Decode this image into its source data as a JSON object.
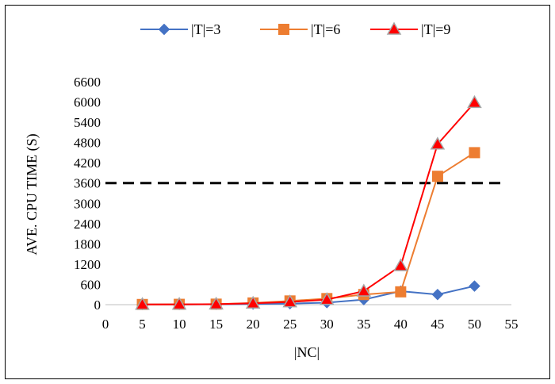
{
  "chart_data": {
    "type": "line",
    "title": "",
    "xlabel": "|NC|",
    "ylabel": "AVE. CPU TIME (S)",
    "xlim": [
      0,
      55
    ],
    "ylim": [
      0,
      6600
    ],
    "x_ticks": [
      "0",
      "5",
      "10",
      "15",
      "20",
      "25",
      "30",
      "35",
      "40",
      "45",
      "50",
      "55"
    ],
    "y_ticks": [
      "0",
      "600",
      "1200",
      "1800",
      "2400",
      "3000",
      "3600",
      "4200",
      "4800",
      "5400",
      "6000",
      "6600"
    ],
    "x": [
      5,
      10,
      15,
      20,
      25,
      30,
      35,
      40,
      45,
      50
    ],
    "series": [
      {
        "name": "|T|=3",
        "color": "#4472C4",
        "marker": "diamond",
        "values": [
          5,
          5,
          10,
          20,
          30,
          60,
          150,
          400,
          300,
          550
        ]
      },
      {
        "name": "|T|=6",
        "color": "#ED7D31",
        "marker": "square",
        "values": [
          5,
          10,
          15,
          50,
          110,
          180,
          300,
          380,
          3800,
          4500
        ]
      },
      {
        "name": "|T|=9",
        "color": "#FF0000",
        "marker": "triangle",
        "values": [
          5,
          10,
          15,
          40,
          80,
          150,
          400,
          1150,
          4750,
          5980
        ]
      }
    ],
    "reference_line": {
      "y": 3600,
      "style": "dashed",
      "color": "#000000"
    },
    "grid": false,
    "legend_position": "top"
  }
}
